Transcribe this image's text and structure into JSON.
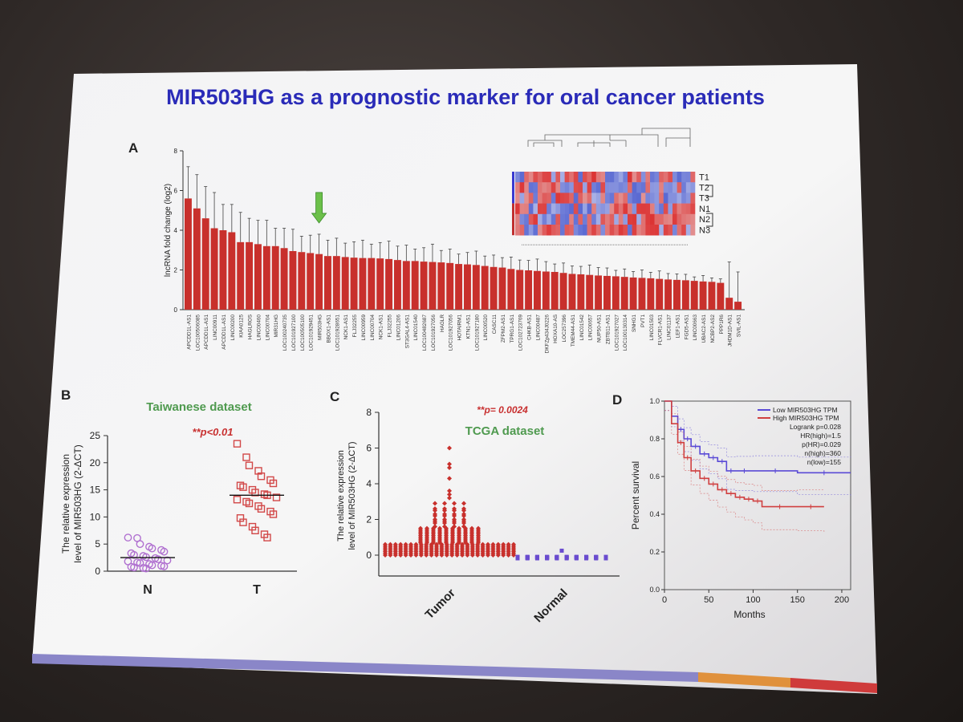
{
  "slide": {
    "title": "MIR503HG as a prognostic marker for oral cancer patients",
    "colors": {
      "title": "#2a2bb8",
      "bars": "#c8302c",
      "green_text": "#4f9a4f",
      "red_text": "#c83030",
      "purple": "#6a4ccf",
      "arrow": "#6cc04a"
    }
  },
  "panel_a": {
    "label": "A",
    "chart_data": {
      "type": "bar",
      "ylabel": "lncRNA fold change (log2)",
      "ylim": [
        0,
        8
      ],
      "yticks": [
        "0",
        "2",
        "4",
        "6",
        "8"
      ],
      "categories": [
        "APCDD1L-AS1",
        "LOC100506085",
        "APCDD1L-AS1",
        "LINC00911",
        "APCDD1L-AS1",
        "LINC00200",
        "KIAA0125",
        "HAGLROS",
        "LINC00460",
        "LINC00704",
        "MIR31HG",
        "LOC100240735",
        "LOC101927100",
        "LOC100505100",
        "LOC101929451",
        "MIR503HG",
        "BBOX1-AS1",
        "LOC101928651",
        "NCK1-AS1",
        "FLJ32255",
        "LINC00959",
        "LINC00704",
        "NCK1-AS1",
        "FLJ32255",
        "LINC01206",
        "ST3GAL4-AS1",
        "LINC01540",
        "LOC100482687",
        "LOC101927056",
        "HAGLR",
        "LOC101927056",
        "HOTAIRM1",
        "KTN1-AS1",
        "LOC101927180",
        "LINC00520",
        "CASC11",
        "ZFPM2-AS1",
        "TPRG1-AS1",
        "LOC102723769",
        "CHKB-AS1",
        "LINC00487",
        "DKFZp434J0226",
        "HOXA10-AS",
        "LOC257396",
        "TMEM44-AS1",
        "LINC01542",
        "LINC00657",
        "NUP50-AS1",
        "ZBTB11-AS1",
        "LOC101927027",
        "LOC100130314",
        "SNHG1",
        "PVT1",
        "LINC01503",
        "FLVCR1-AS1",
        "LINC01137",
        "LEF1-AS1",
        "FGD5-AS1",
        "LINC00663",
        "UBAC2-AS1",
        "NCBP2-AS2",
        "PPP1R6",
        "JHDM1D-AS1",
        "SVIL-AS1"
      ],
      "values": [
        5.6,
        5.1,
        4.6,
        4.1,
        4.0,
        3.9,
        3.4,
        3.4,
        3.3,
        3.2,
        3.2,
        3.1,
        2.95,
        2.9,
        2.85,
        2.8,
        2.7,
        2.7,
        2.65,
        2.62,
        2.6,
        2.6,
        2.58,
        2.55,
        2.5,
        2.45,
        2.45,
        2.42,
        2.4,
        2.38,
        2.35,
        2.3,
        2.28,
        2.25,
        2.2,
        2.15,
        2.12,
        2.05,
        2.0,
        1.98,
        1.95,
        1.92,
        1.9,
        1.85,
        1.8,
        1.78,
        1.75,
        1.72,
        1.7,
        1.68,
        1.65,
        1.62,
        1.6,
        1.58,
        1.55,
        1.52,
        1.5,
        1.48,
        1.45,
        1.42,
        1.4,
        1.35,
        0.6,
        0.4
      ],
      "errors": [
        1.6,
        1.7,
        1.6,
        1.8,
        1.3,
        1.4,
        1.5,
        1.2,
        1.2,
        1.3,
        0.9,
        1.0,
        1.1,
        0.8,
        0.9,
        1.0,
        0.8,
        0.9,
        0.7,
        0.8,
        0.9,
        0.7,
        0.8,
        0.9,
        0.7,
        0.8,
        0.6,
        0.7,
        0.9,
        0.6,
        0.7,
        0.5,
        0.6,
        0.7,
        0.5,
        0.6,
        0.5,
        0.6,
        0.5,
        0.5,
        0.6,
        0.5,
        0.4,
        0.5,
        0.4,
        0.4,
        0.5,
        0.4,
        0.4,
        0.3,
        0.4,
        0.3,
        0.4,
        0.3,
        0.4,
        0.3,
        0.3,
        0.3,
        0.2,
        0.3,
        0.2,
        0.2,
        1.8,
        1.5
      ],
      "highlight_index": 15
    },
    "heatmap": {
      "rows": [
        "T1",
        "T2",
        "T3",
        "N1",
        "N2",
        "N3"
      ]
    }
  },
  "panel_b": {
    "label": "B",
    "title": "Taiwanese dataset",
    "pvalue": "**p<0.01",
    "chart_data": {
      "type": "scatter",
      "ylabel": "The relative expression level of MIR503HG (2-ΔCT)",
      "ylim": [
        0,
        25
      ],
      "yticks": [
        "0",
        "5",
        "10",
        "15",
        "20",
        "25"
      ],
      "categories": [
        "N",
        "T"
      ],
      "series": [
        {
          "name": "N",
          "mean": 2.5,
          "values": [
            6.2,
            6.1,
            5.0,
            4.5,
            4.2,
            3.9,
            3.6,
            3.3,
            3.0,
            2.8,
            2.6,
            2.4,
            2.2,
            2.0,
            1.8,
            1.6,
            1.5,
            1.3,
            1.1,
            1.0,
            0.9,
            0.8,
            0.7,
            0.6,
            0.5
          ]
        },
        {
          "name": "T",
          "mean": 14.0,
          "values": [
            23.5,
            21.0,
            19.5,
            18.5,
            17.5,
            16.8,
            16.2,
            15.8,
            15.5,
            15.0,
            14.5,
            14.2,
            14.0,
            13.6,
            13.2,
            12.8,
            12.5,
            12.0,
            11.5,
            11.0,
            10.5,
            9.8,
            9.0,
            8.2,
            7.5,
            6.8,
            6.2
          ]
        }
      ]
    }
  },
  "panel_c": {
    "label": "C",
    "title": "TCGA dataset",
    "pvalue": "**p= 0.0024",
    "chart_data": {
      "type": "scatter",
      "ylabel": "The relative expression level of MIR503HG (2-ΔCT)",
      "ylim": [
        -0.5,
        8
      ],
      "yticks": [
        "0",
        "2",
        "4",
        "6",
        "8"
      ],
      "categories": [
        "Tumor",
        "Normal"
      ],
      "series": [
        {
          "name": "Tumor",
          "values": [
            6.0,
            5.1,
            4.9,
            4.3,
            3.6,
            3.4,
            3.2,
            2.9,
            2.6,
            2.5,
            2.3,
            2.2,
            2.0,
            1.9,
            1.8,
            1.6,
            1.5,
            1.4,
            1.3,
            1.2,
            1.1,
            1.0,
            0.9,
            0.8,
            0.7,
            0.6,
            0.5,
            0.4,
            0.3,
            0.2,
            0.1,
            0.0
          ]
        },
        {
          "name": "Normal",
          "values": [
            0.25,
            -0.1,
            -0.1,
            -0.12,
            -0.12,
            -0.15,
            -0.15,
            -0.18
          ]
        }
      ]
    }
  },
  "panel_d": {
    "label": "D",
    "chart_data": {
      "type": "line",
      "xlabel": "Months",
      "ylabel": "Percent survival",
      "xlim": [
        0,
        210
      ],
      "ylim": [
        0,
        1.0
      ],
      "xticks": [
        "0",
        "50",
        "100",
        "150",
        "200"
      ],
      "yticks": [
        "0.0",
        "0.2",
        "0.4",
        "0.6",
        "0.8",
        "1.0"
      ],
      "legend": [
        "Low MIR503HG TPM",
        "High MIR503HG TPM"
      ],
      "stats": [
        "Logrank p=0.028",
        "HR(high)=1.5",
        "p(HR)=0.029",
        "n(high)=360",
        "n(low)=155"
      ],
      "series": [
        {
          "name": "Low MIR503HG TPM",
          "x": [
            0,
            8,
            15,
            22,
            30,
            40,
            50,
            60,
            70,
            80,
            100,
            150,
            210
          ],
          "y": [
            1.0,
            0.92,
            0.85,
            0.8,
            0.76,
            0.72,
            0.7,
            0.68,
            0.63,
            0.63,
            0.63,
            0.62,
            0.62
          ]
        },
        {
          "name": "High MIR503HG TPM",
          "x": [
            0,
            8,
            15,
            22,
            30,
            40,
            50,
            60,
            70,
            80,
            90,
            100,
            110,
            150,
            180
          ],
          "y": [
            1.0,
            0.88,
            0.78,
            0.7,
            0.63,
            0.59,
            0.56,
            0.53,
            0.51,
            0.49,
            0.48,
            0.47,
            0.44,
            0.44,
            0.44
          ]
        }
      ]
    }
  }
}
